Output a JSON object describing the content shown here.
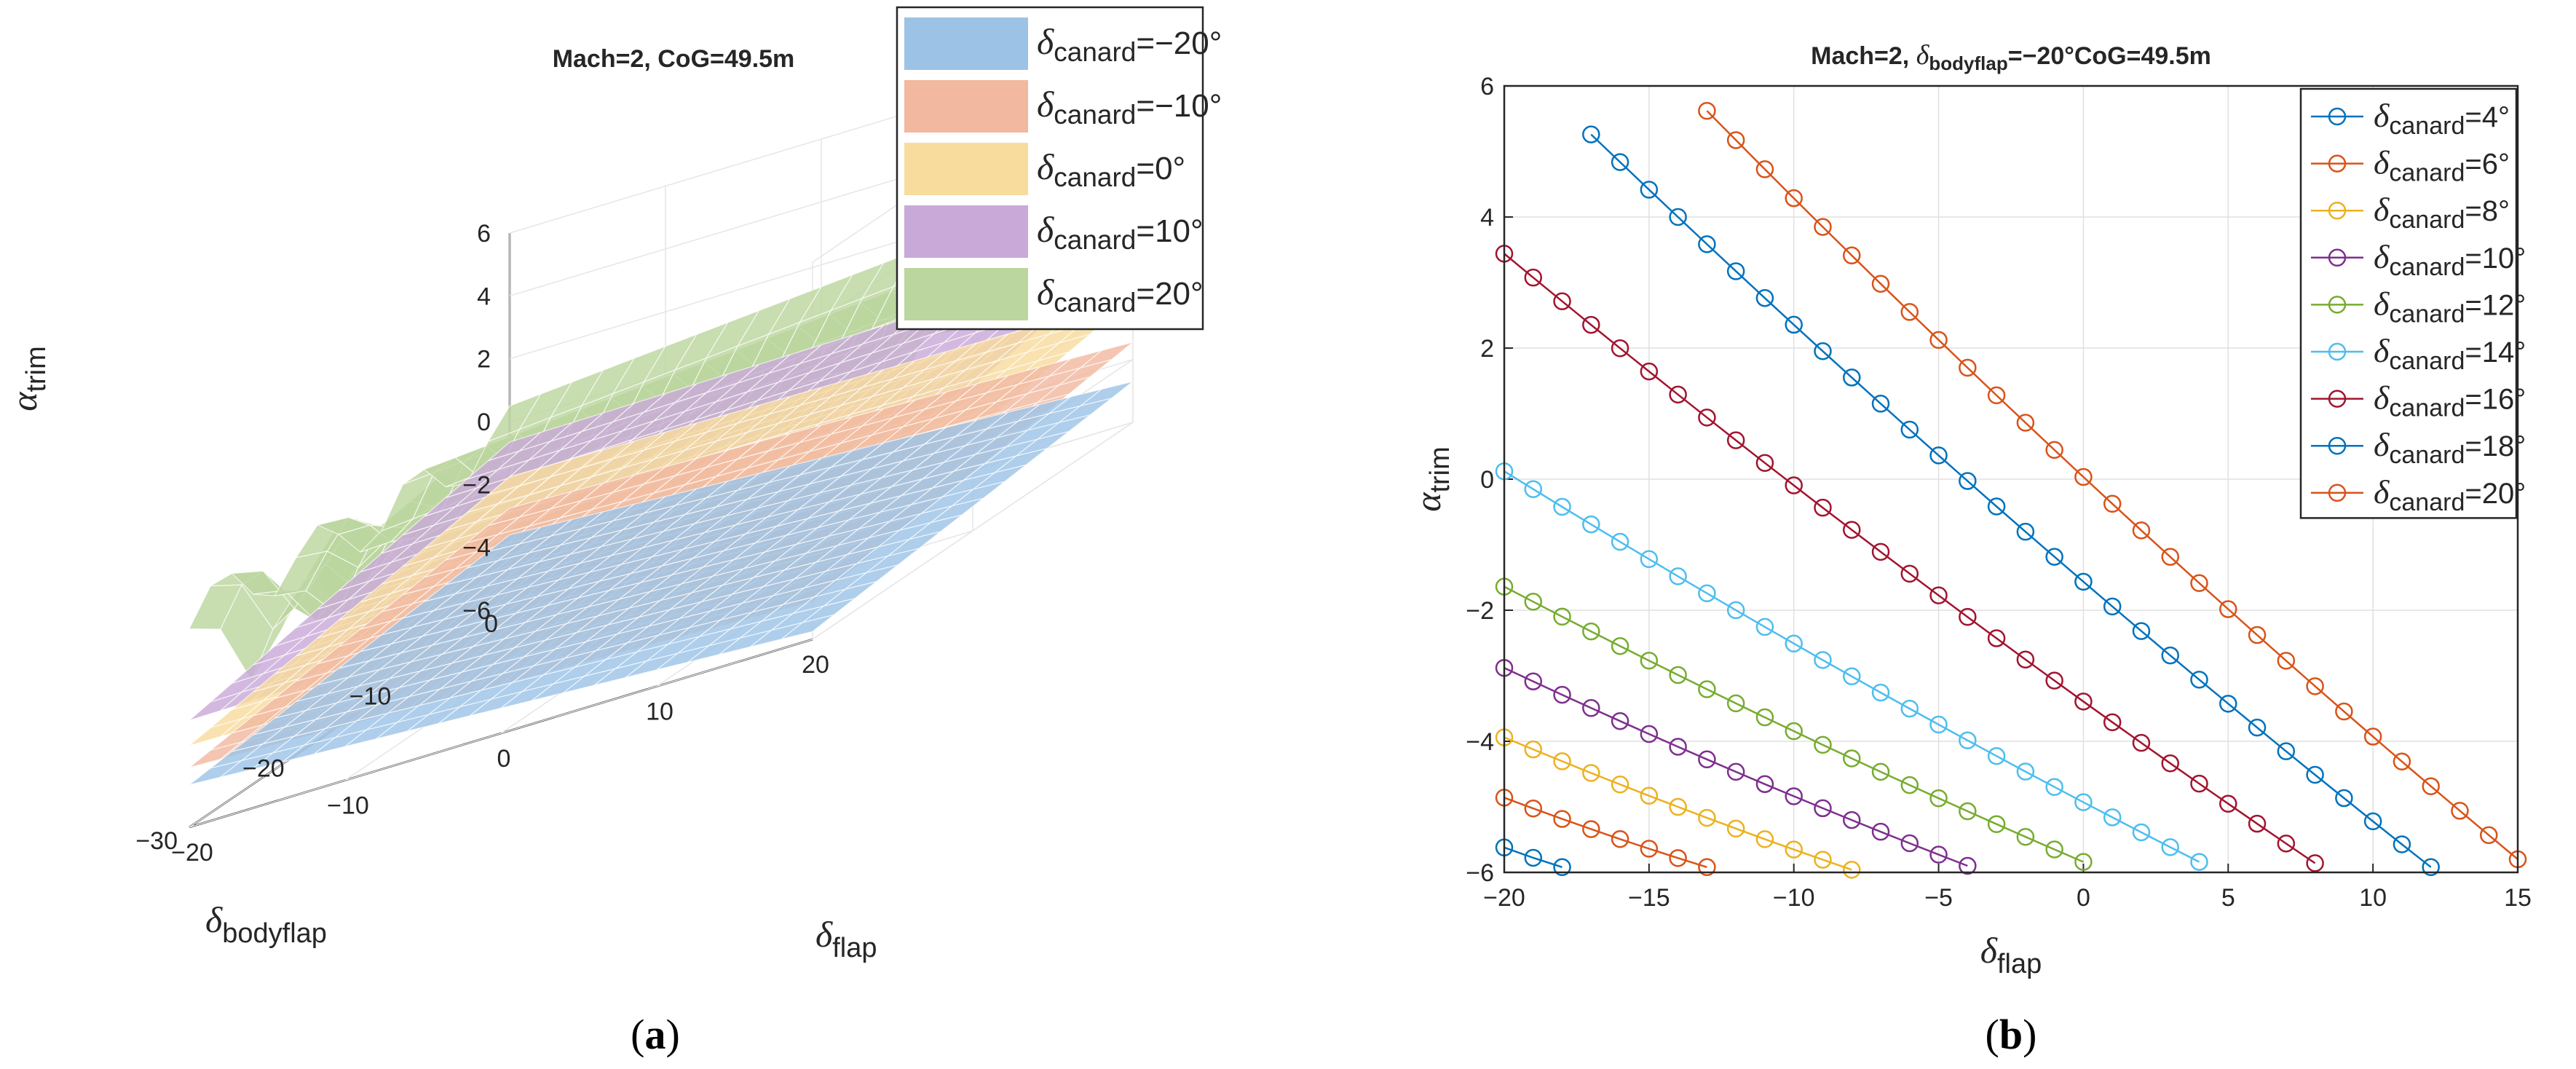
{
  "panel_a": {
    "caption": "(a)",
    "caption_letter": "a",
    "title": "Mach=2, CoG=49.5m",
    "zlabel": {
      "sym": "α",
      "sub": "trim"
    },
    "xlabel": {
      "sym": "δ",
      "sub": "bodyflap"
    },
    "ylabel": {
      "sym": "δ",
      "sub": "flap"
    }
  },
  "panel_b": {
    "caption": "(b)",
    "caption_letter": "b",
    "title": {
      "prefix": "Mach=2, ",
      "sym": "δ",
      "sub": "bodyflap",
      "suffix": "=−20°CoG=49.5m"
    },
    "xlabel": {
      "sym": "δ",
      "sub": "flap"
    },
    "ylabel": {
      "sym": "α",
      "sub": "trim"
    }
  },
  "chart_data": [
    {
      "panel": "a",
      "type": "surface",
      "title": "Mach=2, CoG=49.5m",
      "xlabel": "δ_bodyflap",
      "ylabel": "δ_flap",
      "zlabel": "α_trim",
      "xlim": [
        -30,
        0
      ],
      "ylim": [
        -20,
        20
      ],
      "zlim": [
        -6,
        6
      ],
      "x_ticks": [
        "0",
        "−10",
        "−20",
        "−30"
      ],
      "y_ticks": [
        "−20",
        "−10",
        "0",
        "10",
        "20"
      ],
      "z_ticks": [
        "6",
        "4",
        "2",
        "0",
        "−2",
        "−4",
        "−6"
      ],
      "grid": true,
      "legend_position": "top-right",
      "series": [
        {
          "name": "δcanard=−20°",
          "label_sym": "δ",
          "label_sub": "canard",
          "label_value": "=−20°",
          "color": "#9cc3e6"
        },
        {
          "name": "δcanard=−10°",
          "label_sym": "δ",
          "label_sub": "canard",
          "label_value": "=−10°",
          "color": "#f2b8a0"
        },
        {
          "name": "δcanard=0°",
          "label_sym": "δ",
          "label_sub": "canard",
          "label_value": "=0°",
          "color": "#f8dc9e"
        },
        {
          "name": "δcanard=10°",
          "label_sym": "δ",
          "label_sub": "canard",
          "label_value": "=10°",
          "color": "#c9a9d8"
        },
        {
          "name": "δcanard=20°",
          "label_sym": "δ",
          "label_sub": "canard",
          "label_value": "=20°",
          "color": "#bcd69f"
        }
      ]
    },
    {
      "panel": "b",
      "type": "line",
      "title": "Mach=2, δbodyflap=−20°CoG=49.5m",
      "xlabel": "δ_flap",
      "ylabel": "α_trim",
      "xlim": [
        -20,
        15
      ],
      "ylim": [
        -6,
        6
      ],
      "x_ticks": [
        -20,
        -15,
        -10,
        -5,
        0,
        5,
        10,
        15
      ],
      "y_ticks": [
        6,
        4,
        2,
        0,
        -2,
        -4,
        -6
      ],
      "x_tick_labels": [
        "−20",
        "−15",
        "−10",
        "−5",
        "0",
        "5",
        "10",
        "15"
      ],
      "y_tick_labels": [
        "6",
        "4",
        "2",
        "0",
        "−2",
        "−4",
        "−6"
      ],
      "grid": true,
      "legend_position": "top-right",
      "series": [
        {
          "name": "δcanard=4°",
          "label_sym": "δ",
          "label_sub": "canard",
          "label_value": "=4°",
          "color": "#0072BD",
          "x": [
            -20,
            -18
          ],
          "y": [
            -5.62,
            -5.92
          ]
        },
        {
          "name": "δcanard=6°",
          "label_sym": "δ",
          "label_sub": "canard",
          "label_value": "=6°",
          "color": "#D95319",
          "x": [
            -20,
            -13
          ],
          "y": [
            -4.86,
            -5.92
          ]
        },
        {
          "name": "δcanard=8°",
          "label_sym": "δ",
          "label_sub": "canard",
          "label_value": "=8°",
          "color": "#EDB120",
          "x": [
            -20,
            -8
          ],
          "y": [
            -3.94,
            -5.96
          ]
        },
        {
          "name": "δcanard=10°",
          "label_sym": "δ",
          "label_sub": "canard",
          "label_value": "=10°",
          "color": "#7E2F8E",
          "x": [
            -20,
            -4
          ],
          "y": [
            -2.88,
            -5.9
          ]
        },
        {
          "name": "δcanard=12°",
          "label_sym": "δ",
          "label_sub": "canard",
          "label_value": "=12°",
          "color": "#77AC30",
          "x": [
            -20,
            0
          ],
          "y": [
            -1.64,
            -5.84
          ]
        },
        {
          "name": "δcanard=14°",
          "label_sym": "δ",
          "label_sub": "canard",
          "label_value": "=14°",
          "color": "#4DBEEE",
          "x": [
            -20,
            4
          ],
          "y": [
            0.12,
            -5.84
          ]
        },
        {
          "name": "δcanard=16°",
          "label_sym": "δ",
          "label_sub": "canard",
          "label_value": "=16°",
          "color": "#A2142F",
          "x": [
            -20,
            8
          ],
          "y": [
            3.44,
            -5.86
          ]
        },
        {
          "name": "δcanard=18°",
          "label_sym": "δ",
          "label_sub": "canard",
          "label_value": "=18°",
          "color": "#0072BD",
          "x": [
            -17,
            12
          ],
          "y": [
            5.26,
            -5.92
          ]
        },
        {
          "name": "δcanard=20°",
          "label_sym": "δ",
          "label_sub": "canard",
          "label_value": "=20°",
          "color": "#D95319",
          "x": [
            -13,
            15
          ],
          "y": [
            5.62,
            -5.8
          ]
        }
      ]
    }
  ]
}
